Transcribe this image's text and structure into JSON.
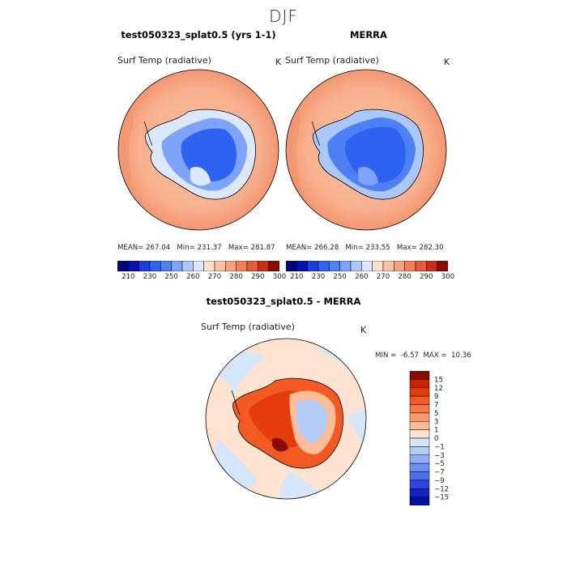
{
  "season": "DJF",
  "panels": [
    {
      "title": "test050323_splat0.5 (yrs 1-1)",
      "variable": "Surf Temp (radiative)",
      "units": "K",
      "stats": {
        "mean_label": "MEAN=",
        "mean": "267.04",
        "min_label": "Min=",
        "min": "231.37",
        "max_label": "Max=",
        "max": "281.87"
      }
    },
    {
      "title": "MERRA",
      "variable": "Surf Temp (radiative)",
      "units": "K",
      "stats": {
        "mean_label": "MEAN=",
        "mean": "266.28",
        "min_label": "Min=",
        "min": "233.55",
        "max_label": "Max=",
        "max": "282.30"
      }
    }
  ],
  "abs_colorbar": {
    "ticks": [
      "210",
      "230",
      "250",
      "260",
      "270",
      "280",
      "290",
      "300"
    ],
    "colors": [
      "#00007a",
      "#0a0fb0",
      "#1a3fdc",
      "#2e62f0",
      "#4d7ff5",
      "#7da3fa",
      "#aac8fb",
      "#dbe8fd",
      "#fde0cc",
      "#fbc2a3",
      "#f8a27d",
      "#f27f5a",
      "#e55a37",
      "#cc2d15",
      "#8a0b00"
    ]
  },
  "diff_panel": {
    "title": "test050323_splat0.5 - MERRA",
    "variable": "Surf Temp (radiative)",
    "units": "K",
    "minmax": {
      "min_label": "MIN =",
      "min": "-6.57",
      "max_label": "MAX =",
      "max": "10.36"
    }
  },
  "diff_colorbar": {
    "labels": [
      "15",
      "12",
      "9",
      "7",
      "5",
      "3",
      "1",
      "0",
      "−1",
      "−3",
      "−5",
      "−7",
      "−9",
      "−12",
      "−15"
    ],
    "colors": [
      "#8a0b00",
      "#cc2200",
      "#e63c0a",
      "#f35a22",
      "#f77a45",
      "#fa9a6e",
      "#fcbd98",
      "#fde3d0",
      "#d6e6fb",
      "#b3cdf8",
      "#8fb0f5",
      "#6c8ff1",
      "#4a6eec",
      "#2b46e0",
      "#1222c4",
      "#050fa0"
    ]
  }
}
